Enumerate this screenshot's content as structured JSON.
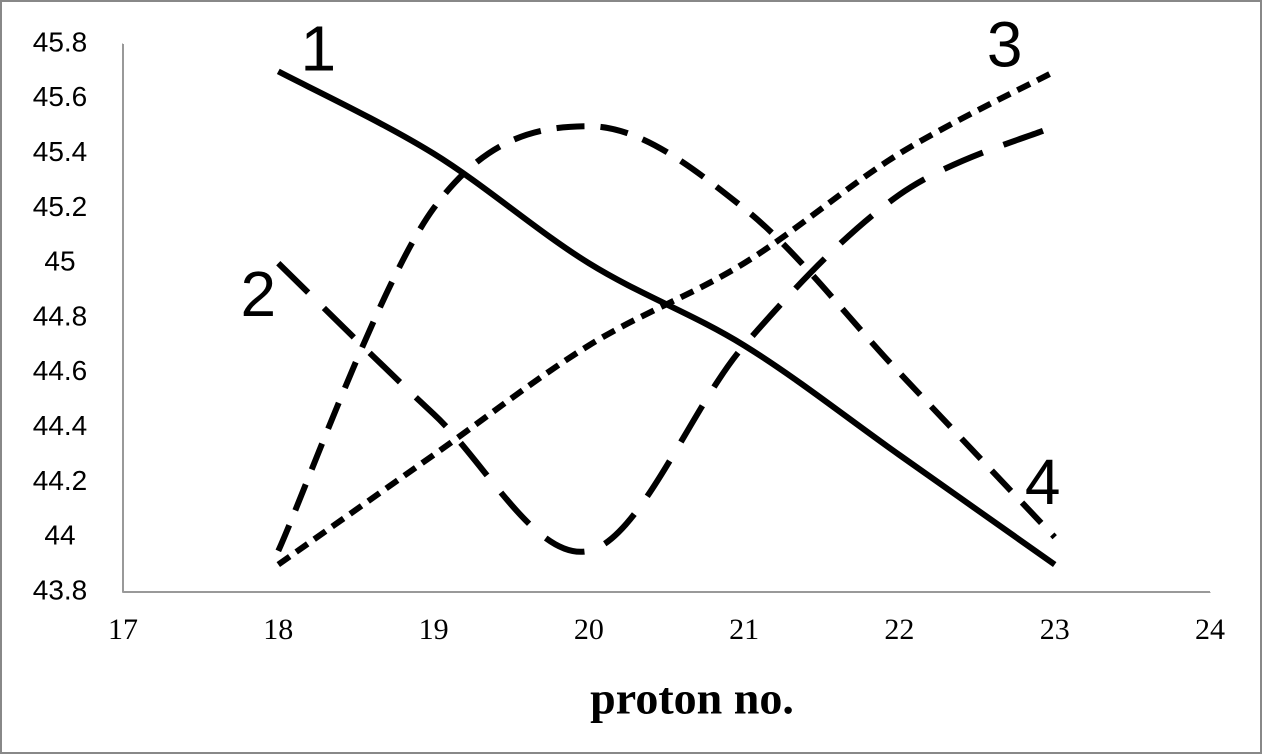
{
  "chart_data": {
    "type": "line",
    "x_label": "proton no.",
    "x": [
      18,
      19,
      20,
      21,
      22,
      23
    ],
    "series": [
      {
        "name": "1",
        "color": "#000000",
        "dash": "solid",
        "values": [
          45.7,
          45.4,
          45.0,
          44.7,
          44.3,
          43.9
        ]
      },
      {
        "name": "2",
        "color": "#000000",
        "dash": "long",
        "values": [
          45.0,
          44.45,
          43.95,
          44.7,
          45.25,
          45.5
        ]
      },
      {
        "name": "3",
        "color": "#000000",
        "dash": "short",
        "values": [
          43.9,
          44.3,
          44.7,
          45.0,
          45.4,
          45.7
        ]
      },
      {
        "name": "4",
        "color": "#000000",
        "dash": "medium",
        "values": [
          43.95,
          45.2,
          45.5,
          45.2,
          44.6,
          44.0
        ]
      }
    ],
    "xlim": [
      17,
      24
    ],
    "xticks": [
      17,
      18,
      19,
      20,
      21,
      22,
      23,
      24
    ],
    "ylim": [
      43.8,
      45.8
    ],
    "yticks": [
      43.8,
      44,
      44.2,
      44.4,
      44.6,
      44.8,
      45,
      45.2,
      45.4,
      45.6,
      45.8
    ],
    "grid": false
  }
}
